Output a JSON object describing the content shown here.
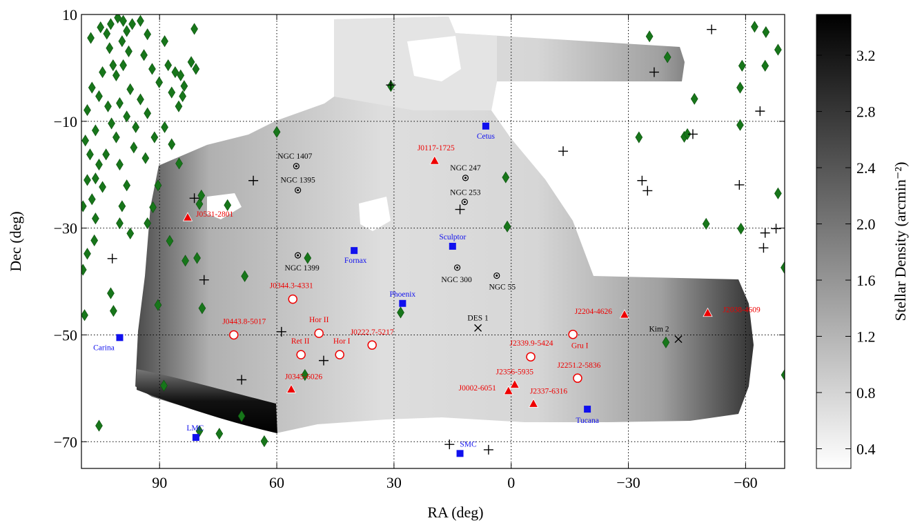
{
  "chart_data": {
    "type": "scatter",
    "xlabel": "RA (deg)",
    "ylabel": "Dec (deg)",
    "xlim": [
      110,
      -70
    ],
    "ylim": [
      10,
      -75
    ],
    "xticks": [
      90,
      60,
      30,
      0,
      {
        "value": -30,
        "label": "−30"
      },
      {
        "value": -60,
        "label": "−60"
      }
    ],
    "yticks": [
      10,
      {
        "value": -10,
        "label": "−10"
      },
      {
        "value": -30,
        "label": "−30"
      },
      {
        "value": -50,
        "label": "−50"
      },
      {
        "value": -70,
        "label": "−70"
      }
    ],
    "grid": true,
    "colorbar": {
      "label": "Stellar Density (arcmin⁻²)",
      "lim": [
        0.26,
        3.49
      ],
      "ticks": [
        0.4,
        0.8,
        1.2,
        1.6,
        {
          "value": 2,
          "label": "2.0"
        },
        2.4,
        2.8,
        3.2
      ]
    },
    "series": [
      {
        "marker": "diamond",
        "color": "#17761a",
        "x": [
          107.6,
          105.1,
          103.5,
          102.8,
          101.9,
          104.6,
          107.3,
          105.5,
          108.5,
          103.2,
          102.3,
          106.4,
          109.0,
          107.8,
          105.5,
          108.5,
          104.6,
          107.3,
          109.6,
          106.4,
          99.3,
          98.4,
          99.6,
          97.9,
          99.3,
          101.1,
          97.5,
          100.2,
          98.4,
          101.1,
          96.6,
          100.2,
          98.4,
          99.6,
          97.5,
          100.2,
          94.9,
          93.1,
          94.0,
          91.9,
          90.1,
          94.9,
          93.1,
          96.1,
          91.3,
          93.6,
          88.7,
          87.8,
          86.0,
          86.9,
          85.1,
          83.7,
          84.1,
          81.1,
          81.9,
          80.7,
          84.6,
          88.7,
          86.9,
          90.4,
          106.7,
          108.5,
          109.6,
          100.7,
          97.0,
          102.5,
          103.7,
          106.4,
          60.0,
          85.0,
          79.3,
          79.8,
          72.6,
          91.7,
          93.1,
          87.4,
          80.4,
          83.4,
          90.4,
          79.1,
          68.2,
          52.1,
          28.3,
          52.8,
          88.9,
          105.5,
          79.8,
          74.7,
          69.0,
          63.2,
          101.8,
          102.5,
          109.2,
          30.8,
          1.4,
          1.0,
          -35.4,
          -40.0,
          -62.3,
          -65.2,
          -68.3,
          -59.1,
          -65.0,
          -58.6,
          -58.6,
          -46.9,
          -32.7,
          -44.3,
          -45.1,
          -68.3,
          -49.9,
          -58.8,
          -69.9,
          -39.6,
          -70.0
        ],
        "y": [
          5.6,
          7.6,
          6.4,
          3.7,
          0.5,
          -0.8,
          -3.7,
          -5.3,
          -7.9,
          -7.2,
          -10.4,
          -11.7,
          -13.6,
          -16.2,
          -18.1,
          -21.0,
          -22.3,
          -24.6,
          -25.9,
          -28.2,
          8.8,
          6.9,
          5.0,
          3.1,
          0.5,
          -1.4,
          -4.0,
          -6.6,
          -9.1,
          -13.0,
          -14.9,
          -18.1,
          -22.0,
          -25.9,
          -31.0,
          -29.1,
          8.8,
          6.3,
          2.4,
          -0.2,
          -2.7,
          -5.9,
          -8.5,
          -11.1,
          -13.0,
          -16.9,
          5.0,
          0.5,
          -0.8,
          -4.6,
          -7.2,
          -3.4,
          -5.3,
          7.3,
          1.1,
          -0.2,
          -1.4,
          -11.1,
          -14.3,
          -22.0,
          -32.3,
          -34.8,
          -37.8,
          9.4,
          8.2,
          8.2,
          -16.2,
          -20.7,
          -12.0,
          -17.9,
          -23.9,
          -25.5,
          -25.7,
          -26.1,
          -29.1,
          -32.4,
          -35.6,
          -36.1,
          -44.4,
          -45.0,
          -39.0,
          -35.6,
          -45.8,
          -57.5,
          -59.5,
          -67.0,
          -68.0,
          -68.5,
          -65.2,
          -69.9,
          -45.5,
          -42.2,
          -46.3,
          -3.4,
          -20.5,
          -29.7,
          5.9,
          2.0,
          7.7,
          6.7,
          3.4,
          0.4,
          0.4,
          -3.7,
          -10.7,
          -5.8,
          -13.0,
          -12.9,
          -12.4,
          -23.5,
          -29.2,
          -30.1,
          -37.4,
          -51.4,
          -57.5
        ]
      },
      {
        "marker": "plus",
        "color": "#000000",
        "x": [
          30.8,
          -51.3,
          -36.6,
          -63.7,
          -13.3,
          -46.5,
          -58.4,
          -33.5,
          -34.9,
          66.0,
          13.1,
          81.1,
          102.1,
          78.6,
          -65.0,
          -67.8,
          -64.6,
          58.8,
          48.0,
          69.0,
          15.8,
          5.8
        ],
        "y": [
          -3.2,
          7.2,
          -0.8,
          -8.1,
          -15.6,
          -12.4,
          -21.9,
          -21.1,
          -23.0,
          -21.1,
          -26.5,
          -24.4,
          -35.7,
          -39.7,
          -30.9,
          -30.1,
          -33.7,
          -49.4,
          -54.8,
          -58.4,
          -70.5,
          -71.5
        ]
      },
      {
        "marker": "ring",
        "color": "#000000",
        "labels": [
          "NGC 1407",
          "NGC 1395",
          "NGC 1399",
          "NGC 247",
          "NGC 253",
          "NGC 300",
          "NGC 55"
        ],
        "x": [
          55.0,
          54.6,
          54.6,
          11.7,
          11.9,
          13.8,
          3.7
        ],
        "y": [
          -18.4,
          -22.9,
          -35.1,
          -20.6,
          -25.1,
          -37.4,
          -38.9
        ]
      },
      {
        "marker": "cross",
        "color": "#000000",
        "labels": [
          "DES 1",
          "Kim 2"
        ],
        "x": [
          8.5,
          -42.8
        ],
        "y": [
          -48.7,
          -50.8
        ]
      },
      {
        "marker": "square",
        "color": "#1010ee",
        "labels": [
          "Cetus",
          "Sculptor",
          "Fornax",
          "Phoenix",
          "Carina",
          "LMC",
          "SMC",
          "Tucana"
        ],
        "x": [
          6.5,
          15.0,
          40.2,
          27.8,
          100.2,
          80.7,
          13.1,
          -19.5
        ],
        "y": [
          -10.9,
          -33.4,
          -34.2,
          -44.1,
          -50.5,
          -69.2,
          -72.2,
          -63.9
        ]
      },
      {
        "marker": "circle",
        "color": "#ee0000",
        "labels": [
          "J0344.3-4331",
          "J0443.8-5017",
          "Hor II",
          "Ret II",
          "Hor I",
          "J0222.7-5217",
          "J2339.9-5424",
          "J2251.2-5836",
          "Gru I"
        ],
        "x": [
          55.9,
          71.0,
          49.2,
          53.8,
          43.9,
          35.6,
          -5.0,
          -17.0,
          -15.8
        ],
        "y": [
          -43.3,
          -50.0,
          -49.7,
          -53.7,
          -53.7,
          -51.9,
          -54.1,
          -58.1,
          -49.9
        ]
      },
      {
        "marker": "triangle",
        "color": "#ee0000",
        "labels": [
          "J0117-1725",
          "J0531-2801",
          "J0345-6026",
          "J0002-6051",
          "J2356-5935",
          "J2337-6316",
          "J2204-4626",
          "J2038-4609"
        ],
        "x": [
          19.6,
          82.8,
          56.3,
          0.7,
          -0.9,
          -5.7,
          -29.0,
          -50.3
        ],
        "y": [
          -17.4,
          -28.0,
          -60.2,
          -60.5,
          -59.3,
          -62.9,
          -46.2,
          -45.9
        ]
      }
    ]
  }
}
